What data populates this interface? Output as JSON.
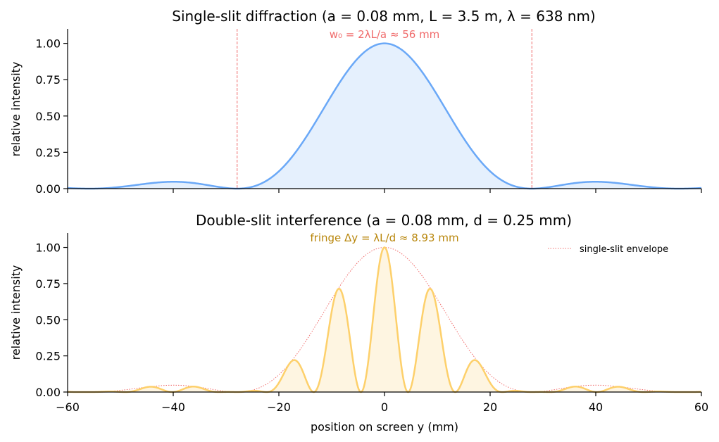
{
  "chart_data": [
    {
      "type": "line",
      "title": "Single-slit diffraction  (a = 0.08 mm, L = 3.5 m, λ = 638 nm)",
      "ylabel": "relative intensity",
      "xlabel": "",
      "xlim": [
        -60,
        60
      ],
      "ylim": [
        0,
        1.1
      ],
      "yticks": [
        "0.00",
        "0.25",
        "0.50",
        "0.75",
        "1.00"
      ],
      "yticks_values": [
        0,
        0.25,
        0.5,
        0.75,
        1.0
      ],
      "xticks_values": [
        -60,
        -40,
        -20,
        0,
        20,
        40,
        60
      ],
      "show_xtick_labels": false,
      "grid": false,
      "params": {
        "a_mm": 0.08,
        "L_m": 3.5,
        "lambda_nm": 638
      },
      "series": [
        {
          "kind": "single-slit",
          "color": "#6aa8f7",
          "fill": "#e5f0fd"
        }
      ],
      "vlines": [
        -27.9,
        27.9
      ],
      "vline_color": "#f06b6b",
      "annotation": "w₀ = 2λL/a ≈ 56 mm"
    },
    {
      "type": "line",
      "title": "Double-slit interference  (a = 0.08 mm, d = 0.25 mm)",
      "ylabel": "relative intensity",
      "xlabel": "position on screen y (mm)",
      "xlim": [
        -60,
        60
      ],
      "ylim": [
        0,
        1.1
      ],
      "yticks": [
        "0.00",
        "0.25",
        "0.50",
        "0.75",
        "1.00"
      ],
      "yticks_values": [
        0,
        0.25,
        0.5,
        0.75,
        1.0
      ],
      "xticks": [
        "−60",
        "−40",
        "−20",
        "0",
        "20",
        "40",
        "60"
      ],
      "xticks_values": [
        -60,
        -40,
        -20,
        0,
        20,
        40,
        60
      ],
      "grid": false,
      "params": {
        "a_mm": 0.08,
        "d_mm": 0.25,
        "L_m": 3.5,
        "lambda_nm": 638
      },
      "series": [
        {
          "kind": "double-slit",
          "color": "#fdd06b",
          "fill": "#fef5e1"
        },
        {
          "name": "single-slit envelope",
          "kind": "envelope",
          "color": "#f06b6b",
          "style": "dotted"
        }
      ],
      "legend": {
        "position": "top-right",
        "entries": [
          "single-slit envelope"
        ]
      },
      "annotation": "fringe Δy = λL/d ≈ 8.93 mm"
    }
  ]
}
